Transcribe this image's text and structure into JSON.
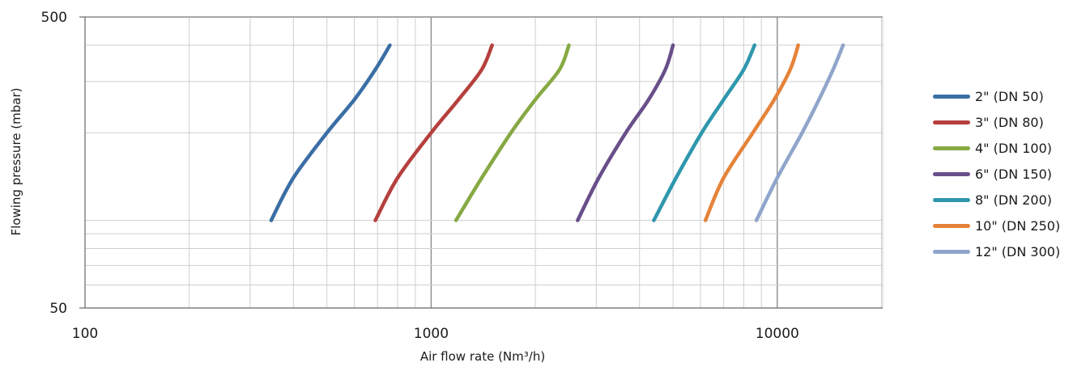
{
  "chart_data": {
    "type": "line",
    "title": "",
    "xlabel": "Air flow rate (Nm³/h)",
    "ylabel": "Flowing pressure (mbar)",
    "xscale": "log",
    "yscale": "log",
    "xlim": [
      100,
      20000
    ],
    "ylim": [
      50,
      500
    ],
    "x_tick_labels": [
      "100",
      "1000",
      "10000"
    ],
    "y_tick_labels": [
      "50",
      "500"
    ],
    "grid": true,
    "legend_position": "right",
    "series": [
      {
        "name": "2\" (DN 50)",
        "color": "#3b6ea5",
        "points": [
          [
            345,
            100
          ],
          [
            400,
            140
          ],
          [
            500,
            200
          ],
          [
            600,
            260
          ],
          [
            690,
            330
          ],
          [
            760,
            400
          ]
        ]
      },
      {
        "name": "3\" (DN 80)",
        "color": "#b5403d",
        "points": [
          [
            690,
            100
          ],
          [
            800,
            140
          ],
          [
            1000,
            200
          ],
          [
            1200,
            260
          ],
          [
            1400,
            330
          ],
          [
            1500,
            400
          ]
        ]
      },
      {
        "name": "4\" (DN 100)",
        "color": "#86a943",
        "points": [
          [
            1180,
            100
          ],
          [
            1400,
            140
          ],
          [
            1700,
            200
          ],
          [
            2000,
            260
          ],
          [
            2350,
            330
          ],
          [
            2500,
            400
          ]
        ]
      },
      {
        "name": "6\" (DN 150)",
        "color": "#684f8a",
        "points": [
          [
            2650,
            100
          ],
          [
            3050,
            140
          ],
          [
            3650,
            200
          ],
          [
            4250,
            260
          ],
          [
            4750,
            330
          ],
          [
            5000,
            400
          ]
        ]
      },
      {
        "name": "8\" (DN 200)",
        "color": "#2f97ad",
        "points": [
          [
            4400,
            100
          ],
          [
            5100,
            140
          ],
          [
            6050,
            200
          ],
          [
            7000,
            260
          ],
          [
            8000,
            330
          ],
          [
            8600,
            400
          ]
        ]
      },
      {
        "name": "10\" (DN 250)",
        "color": "#e5833a",
        "points": [
          [
            6200,
            100
          ],
          [
            7000,
            140
          ],
          [
            8500,
            200
          ],
          [
            9800,
            260
          ],
          [
            10900,
            330
          ],
          [
            11500,
            400
          ]
        ]
      },
      {
        "name": "12\" (DN 300)",
        "color": "#8fa5cb",
        "points": [
          [
            8700,
            100
          ],
          [
            10000,
            140
          ],
          [
            11800,
            200
          ],
          [
            13200,
            260
          ],
          [
            14500,
            330
          ],
          [
            15500,
            400
          ]
        ]
      }
    ]
  }
}
